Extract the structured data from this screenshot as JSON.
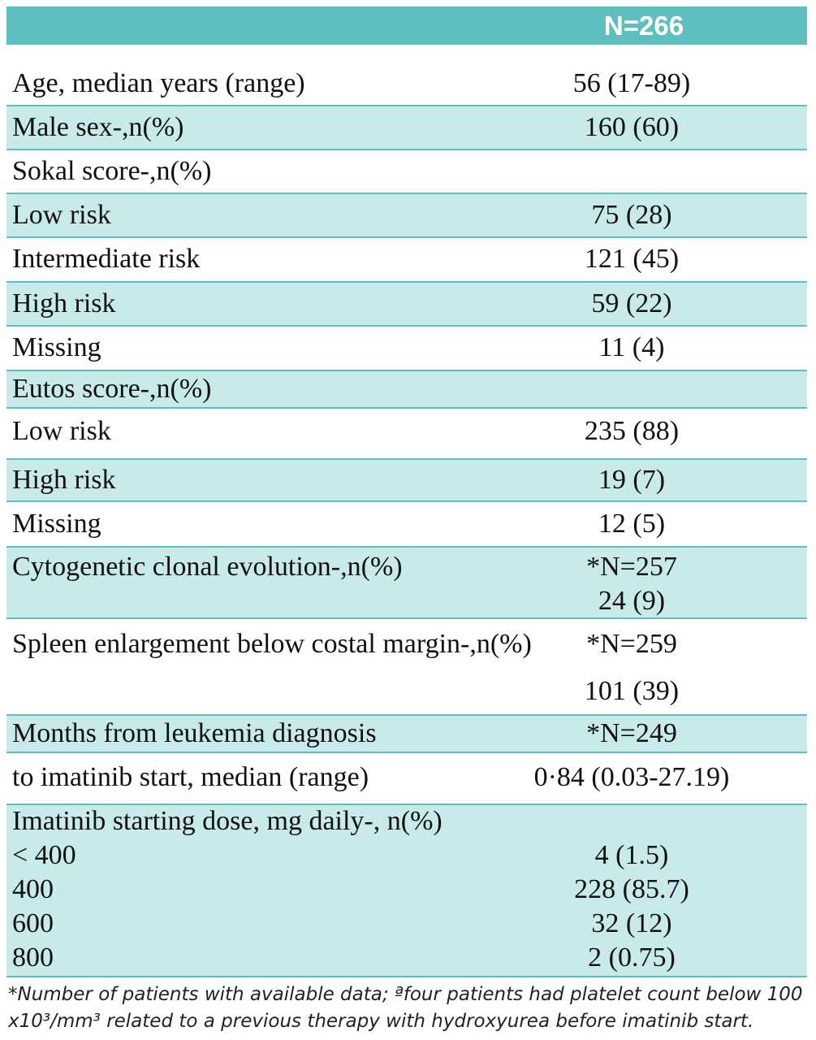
{
  "header": {
    "n_label": "N=266"
  },
  "rows": [
    {
      "label": "Age, median years (range)",
      "value": "56 (17-89)"
    },
    {
      "label": "Male sex-,n(%)",
      "value": "160 (60)"
    },
    {
      "label": "Sokal score-,n(%)",
      "value": ""
    },
    {
      "label": "Low risk",
      "value": "75 (28)"
    },
    {
      "label": "Intermediate risk",
      "value": "121 (45)"
    },
    {
      "label": "High risk",
      "value": "59 (22)"
    },
    {
      "label": "Missing",
      "value": "11 (4)"
    },
    {
      "label": "Eutos score-,n(%)",
      "value": ""
    },
    {
      "label": "Low risk",
      "value": "235 (88)"
    },
    {
      "label": "High risk",
      "value": "19 (7)"
    },
    {
      "label": "Missing",
      "value": "12 (5)"
    },
    {
      "label": "Cytogenetic clonal evolution-,n(%)",
      "value": "*N=257",
      "value2": "24 (9)"
    },
    {
      "label": "Spleen enlargement below costal margin-,n(%)",
      "value": "*N=259"
    },
    {
      "label": "",
      "value": "101 (39)"
    },
    {
      "label": "Months from leukemia diagnosis",
      "value": "*N=249"
    },
    {
      "label": "to imatinib start, median (range)",
      "value": "0·84 (0.03-27.19)"
    },
    {
      "label": "Imatinib starting dose, mg daily-, n(%)",
      "value": ""
    },
    {
      "label": "< 400",
      "value": "4 (1.5)"
    },
    {
      "label": "400",
      "value": "228 (85.7)"
    },
    {
      "label": "600",
      "value": "32 (12)"
    },
    {
      "label": "800",
      "value": "2 (0.75)"
    }
  ],
  "footnote": {
    "line1": "*Number of patients with available data; ªfour patients had platelet count below 100",
    "line2": "x10³/mm³ related to a previous therapy with hydroxyurea before imatinib start."
  }
}
